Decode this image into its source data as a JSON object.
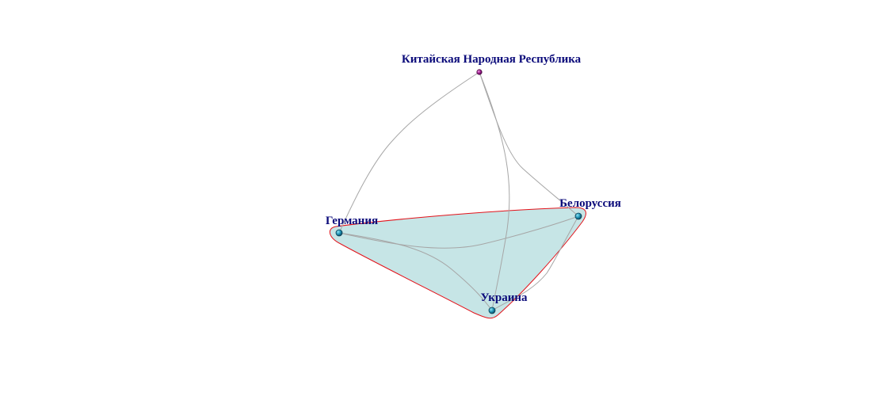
{
  "graph": {
    "colors": {
      "edge": "#a6a6a6",
      "cluster_fill": "#c6e5e6",
      "cluster_stroke": "#e3121a",
      "label": "#0a0a7a",
      "node_primary": "#1b8fb0",
      "node_primary_dark": "#0b3f55",
      "node_china": "#9c1b8c",
      "node_china_dark": "#4a0b44"
    },
    "nodes": [
      {
        "id": "china",
        "label": "Китайская Народная Республика",
        "icon": "node-sphere-magenta",
        "in_cluster": false
      },
      {
        "id": "germany",
        "label": "Германия",
        "icon": "node-sphere-teal",
        "in_cluster": true
      },
      {
        "id": "belarus",
        "label": "Белоруссия",
        "icon": "node-sphere-teal",
        "in_cluster": true
      },
      {
        "id": "ukraine",
        "label": "Украина",
        "icon": "node-sphere-teal",
        "in_cluster": true
      }
    ],
    "edges": [
      {
        "source": "china",
        "target": "germany"
      },
      {
        "source": "china",
        "target": "belarus"
      },
      {
        "source": "china",
        "target": "ukraine"
      },
      {
        "source": "germany",
        "target": "belarus"
      },
      {
        "source": "germany",
        "target": "ukraine"
      },
      {
        "source": "belarus",
        "target": "ukraine"
      }
    ],
    "clusters": [
      {
        "id": "cluster-1",
        "members": [
          "germany",
          "belarus",
          "ukraine"
        ]
      }
    ]
  }
}
